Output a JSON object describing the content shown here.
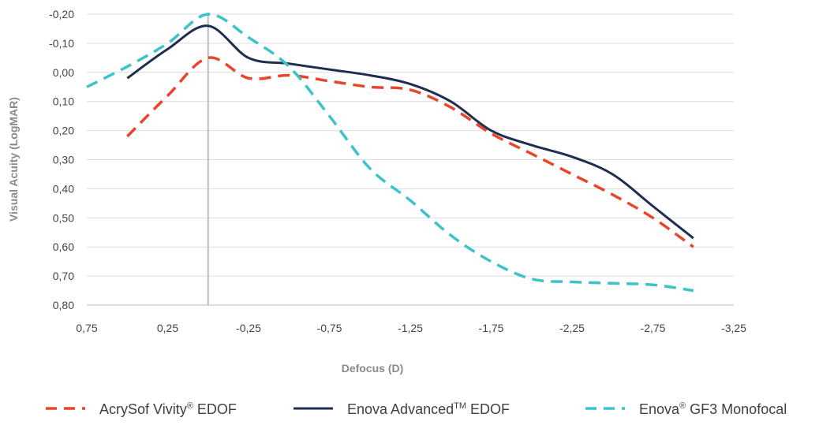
{
  "chart_data": {
    "type": "line",
    "xlabel": "Defocus (D)",
    "ylabel": "Visual Acuity (LogMAR)",
    "x_ticks": [
      "0,75",
      "0,25",
      "-0,25",
      "-0,75",
      "-1,25",
      "-1,75",
      "-2,25",
      "-2,75",
      "-3,25"
    ],
    "y_ticks": [
      "-0,20",
      "-0,10",
      "0,00",
      "0,10",
      "0,20",
      "0,30",
      "0,40",
      "0,50",
      "0,60",
      "0,70",
      "0,80"
    ],
    "xlim": [
      0.75,
      -3.25
    ],
    "ylim": [
      -0.2,
      0.8
    ],
    "y_axis_inverted": true,
    "reference_line_x": 0,
    "grid": "horizontal",
    "legend_position": "bottom",
    "series": [
      {
        "name": "AcrySof Vivity® EDOF",
        "legend_main": "AcrySof Vivity",
        "legend_sup": "®",
        "legend_tail": " EDOF",
        "color": "#e8462a",
        "dash": "dashed",
        "x": [
          0.5,
          0.25,
          0.0,
          -0.25,
          -0.5,
          -0.75,
          -1.0,
          -1.25,
          -1.5,
          -1.75,
          -2.0,
          -2.25,
          -2.5,
          -2.75,
          -3.0
        ],
        "y": [
          0.22,
          0.08,
          -0.05,
          0.02,
          0.01,
          0.03,
          0.05,
          0.06,
          0.12,
          0.21,
          0.28,
          0.35,
          0.42,
          0.5,
          0.6
        ]
      },
      {
        "name": "Enova Advanced™ EDOF",
        "legend_main": "Enova Advanced",
        "legend_sup": "TM",
        "legend_tail": " EDOF",
        "color": "#1f2d4f",
        "dash": "solid",
        "x": [
          0.5,
          0.25,
          0.0,
          -0.25,
          -0.5,
          -0.75,
          -1.0,
          -1.25,
          -1.5,
          -1.75,
          -2.0,
          -2.25,
          -2.5,
          -2.75,
          -3.0
        ],
        "y": [
          0.02,
          -0.08,
          -0.16,
          -0.05,
          -0.03,
          -0.01,
          0.01,
          0.04,
          0.1,
          0.2,
          0.25,
          0.29,
          0.35,
          0.46,
          0.57
        ]
      },
      {
        "name": "Enova® GF3 Monofocal",
        "legend_main": "Enova",
        "legend_sup": "®",
        "legend_tail": " GF3 Monofocal",
        "color": "#3cc3c9",
        "dash": "dashed",
        "x": [
          0.75,
          0.5,
          0.25,
          0.0,
          -0.25,
          -0.5,
          -0.75,
          -1.0,
          -1.25,
          -1.5,
          -1.75,
          -2.0,
          -2.25,
          -2.5,
          -2.75,
          -3.0
        ],
        "y": [
          0.05,
          -0.02,
          -0.1,
          -0.2,
          -0.12,
          -0.02,
          0.15,
          0.33,
          0.44,
          0.56,
          0.65,
          0.71,
          0.72,
          0.725,
          0.73,
          0.75
        ]
      }
    ]
  }
}
